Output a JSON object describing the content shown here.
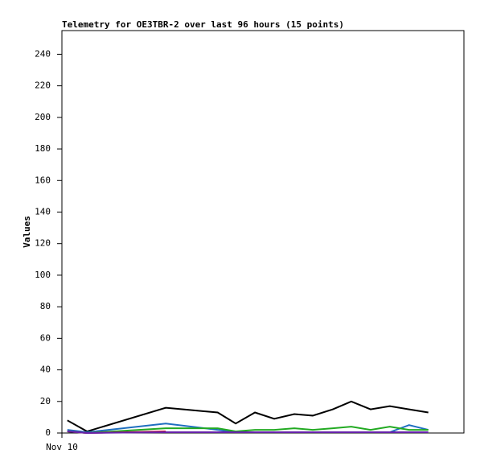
{
  "chart_data": {
    "type": "line",
    "title": "Telemetry for OE3TBR-2 over last 96 hours (15 points)",
    "y_label": "Values",
    "x": [
      1.3,
      6,
      24.8,
      37.2,
      41.5,
      46.1,
      50.7,
      55.5,
      59.9,
      64.7,
      69.1,
      73.7,
      78.3,
      82.9,
      87.5
    ],
    "xlim": [
      0,
      96
    ],
    "xticks": [
      {
        "value": 0,
        "label": "Nov 10"
      }
    ],
    "ylim": [
      0,
      255
    ],
    "yticks": [
      0,
      20,
      40,
      60,
      80,
      100,
      120,
      140,
      160,
      180,
      200,
      220,
      240
    ],
    "series": [
      {
        "color": "#000000",
        "values": [
          8,
          1,
          16,
          13,
          6,
          13,
          9,
          12,
          11,
          15,
          20,
          15,
          17,
          15,
          13
        ]
      },
      {
        "color": "#1f6fc0",
        "values": [
          2,
          0.5,
          6,
          2,
          0.5,
          0.5,
          0.5,
          0.5,
          0.5,
          0.5,
          0.5,
          0.5,
          0.5,
          5,
          2
        ]
      },
      {
        "color": "#22aa22",
        "values": [
          1,
          0,
          3,
          3,
          1,
          2,
          2,
          3,
          2,
          3,
          4,
          2,
          4,
          2,
          2
        ]
      },
      {
        "color": "#cc1133",
        "values": [
          1,
          0,
          1,
          null,
          null,
          null,
          null,
          null,
          null,
          null,
          null,
          null,
          null,
          null,
          null
        ]
      },
      {
        "color": "#6622aa",
        "values": [
          1,
          0,
          0.5,
          0.5,
          0.5,
          0.5,
          0.5,
          0.5,
          0.5,
          0.5,
          0.5,
          0.5,
          0.5,
          0.5,
          0.5
        ]
      }
    ]
  }
}
